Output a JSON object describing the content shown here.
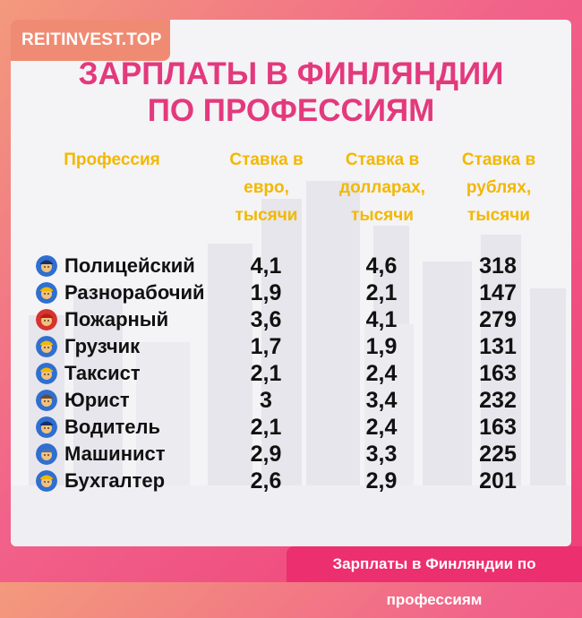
{
  "brand": "REITINVEST.TOP",
  "title": {
    "line1": "Зарплаты в Финляндии",
    "line2": "по профессиям"
  },
  "headers": {
    "profession": "Профессия",
    "euro": "Ставка в\nевро,\nтысячи",
    "usd": "Ставка в\nдолларах,\nтысячи",
    "rub": "Ставка в\nрублях,\nтысячи"
  },
  "rows": [
    {
      "profession": "Полицейский",
      "icon": "police-officer-icon",
      "euro": "4,1",
      "usd": "4,6",
      "rub": "318"
    },
    {
      "profession": "Разнорабочий",
      "icon": "worker-icon",
      "euro": "1,9",
      "usd": "2,1",
      "rub": "147"
    },
    {
      "profession": "Пожарный",
      "icon": "firefighter-icon",
      "euro": "3,6",
      "usd": "4,1",
      "rub": "279"
    },
    {
      "profession": "Грузчик",
      "icon": "loader-icon",
      "euro": "1,7",
      "usd": "1,9",
      "rub": "131"
    },
    {
      "profession": "Таксист",
      "icon": "taxi-driver-icon",
      "euro": "2,1",
      "usd": "2,4",
      "rub": "163"
    },
    {
      "profession": "Юрист",
      "icon": "lawyer-icon",
      "euro": "3",
      "usd": "3,4",
      "rub": "232"
    },
    {
      "profession": "Водитель",
      "icon": "driver-icon",
      "euro": "2,1",
      "usd": "2,4",
      "rub": "163"
    },
    {
      "profession": "Машинист",
      "icon": "train-driver-icon",
      "euro": "2,9",
      "usd": "3,3",
      "rub": "225"
    },
    {
      "profession": "Бухгалтер",
      "icon": "accountant-icon",
      "euro": "2,6",
      "usd": "2,9",
      "rub": "201"
    }
  ],
  "footer": "Зарплаты в Финляндии по профессиям",
  "colors": {
    "title": "#e3397d",
    "header": "#f2b800",
    "footer_bg": "#ec2f6e",
    "brand_bg": "#f08b73"
  }
}
